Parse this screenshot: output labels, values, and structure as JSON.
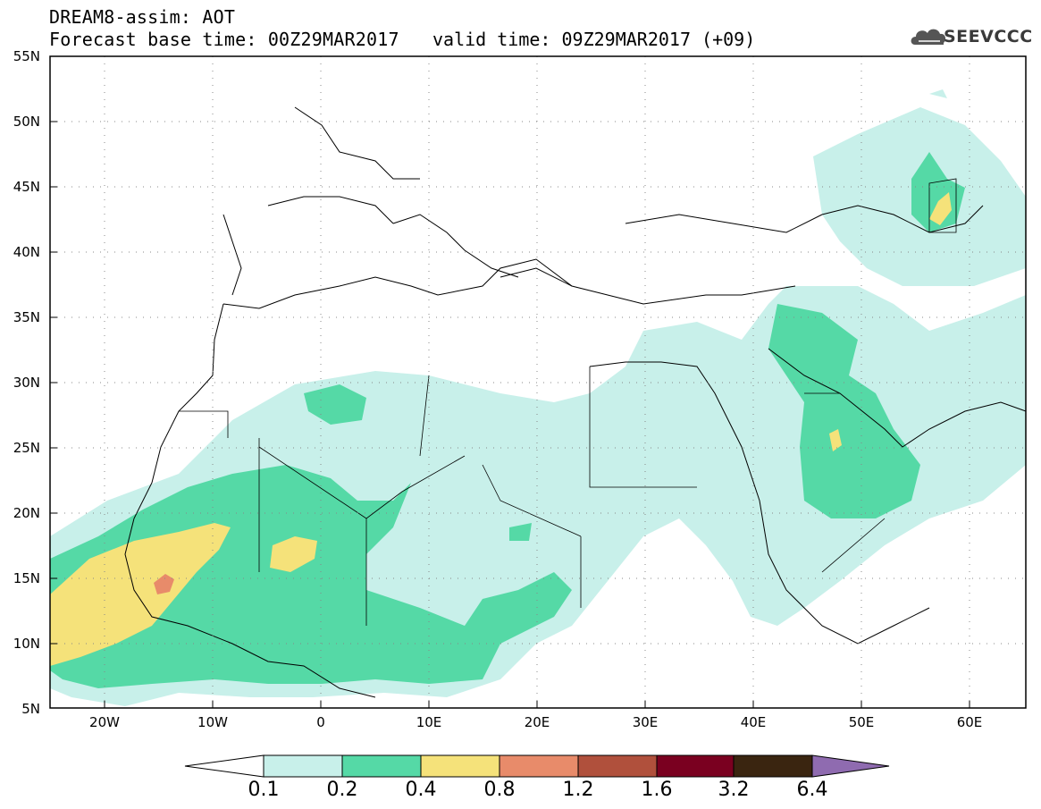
{
  "header": {
    "title": "DREAM8-assim: AOT",
    "base_time": "Forecast base time: 00Z29MAR2017",
    "valid_time": "valid time: 09Z29MAR2017 (+09)",
    "logo_text": "SEEVCCC"
  },
  "map": {
    "projection": "lat-lon",
    "lon_range": [
      -25,
      65
    ],
    "lat_range": [
      5,
      55
    ],
    "lat_ticks": [
      "55N",
      "50N",
      "45N",
      "40N",
      "35N",
      "30N",
      "25N",
      "20N",
      "15N",
      "10N",
      "5N"
    ],
    "lon_ticks": [
      "20W",
      "10W",
      "0",
      "10E",
      "20E",
      "30E",
      "40E",
      "50E",
      "60E"
    ],
    "gridlines": "dotted"
  },
  "colorbar": {
    "labels": [
      "0.1",
      "0.2",
      "0.4",
      "0.8",
      "1.2",
      "1.6",
      "3.2",
      "6.4"
    ],
    "colors": [
      "#ffffff",
      "#c8f0ea",
      "#55d9a6",
      "#f5e27a",
      "#e88b6a",
      "#b0503c",
      "#7a0020",
      "#3a2510",
      "#8f6bb0"
    ]
  }
}
